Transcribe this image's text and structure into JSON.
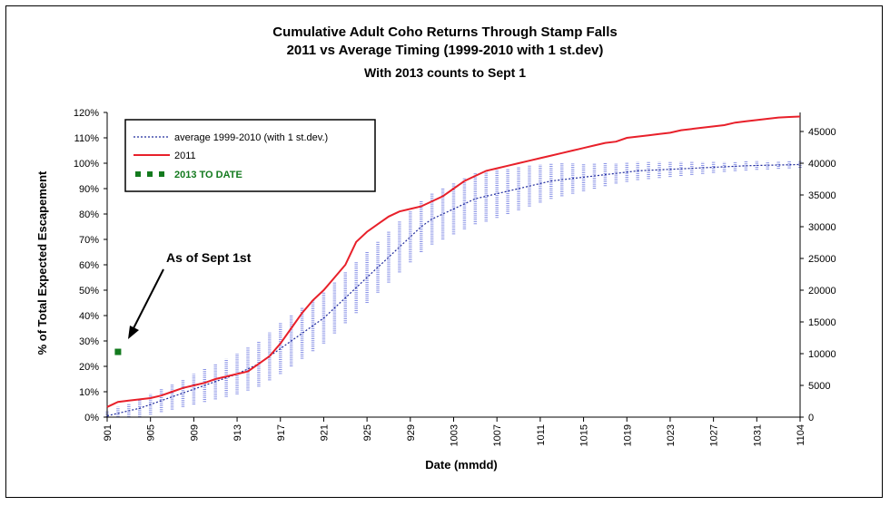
{
  "chart_data": {
    "type": "line",
    "title": "Cumulative Adult Coho Returns Through Stamp Falls",
    "subtitle": "2011 vs Average Timing (1999-2010 with 1 st.dev)",
    "subtitle2": "With 2013 counts to Sept 1",
    "xlabel": "Date (mmdd)",
    "ylabel": "% of Total Expected Escapement",
    "x_categories": [
      "901",
      "902",
      "903",
      "904",
      "905",
      "906",
      "907",
      "908",
      "909",
      "910",
      "911",
      "912",
      "913",
      "914",
      "915",
      "916",
      "917",
      "918",
      "919",
      "920",
      "921",
      "922",
      "923",
      "924",
      "925",
      "926",
      "927",
      "928",
      "929",
      "930",
      "1001",
      "1002",
      "1003",
      "1004",
      "1005",
      "1006",
      "1007",
      "1008",
      "1009",
      "1010",
      "1011",
      "1012",
      "1013",
      "1014",
      "1015",
      "1016",
      "1017",
      "1018",
      "1019",
      "1020",
      "1021",
      "1022",
      "1023",
      "1024",
      "1025",
      "1026",
      "1027",
      "1028",
      "1029",
      "1030",
      "1031",
      "1101",
      "1102",
      "1103",
      "1104"
    ],
    "x_tick_labels": [
      "901",
      "905",
      "909",
      "913",
      "917",
      "921",
      "925",
      "929",
      "1003",
      "1007",
      "1011",
      "1015",
      "1019",
      "1023",
      "1027",
      "1031",
      "1104"
    ],
    "ylim": [
      0,
      120
    ],
    "y_ticks": [
      "0%",
      "10%",
      "20%",
      "30%",
      "40%",
      "50%",
      "60%",
      "70%",
      "80%",
      "90%",
      "100%",
      "110%",
      "120%"
    ],
    "y2lim": [
      0,
      48000
    ],
    "y2_ticks": [
      "0",
      "5000",
      "10000",
      "15000",
      "20000",
      "25000",
      "30000",
      "35000",
      "40000",
      "45000"
    ],
    "legend": [
      "average 1999-2010 (with 1 st.dev.)",
      "2011",
      "2013 TO DATE"
    ],
    "legend_position": "top-left",
    "annotation": "As of Sept 1st",
    "series": [
      {
        "name": "average 1999-2010 (with 1 st.dev.)",
        "style": "dotted",
        "color": "#1f2a9c",
        "values": [
          0.5,
          1.5,
          2.5,
          3.5,
          5,
          6.5,
          8,
          9.5,
          11,
          12.5,
          14,
          15.5,
          17,
          19,
          21,
          24,
          27,
          30,
          33,
          36,
          39,
          43,
          47,
          51,
          55,
          59,
          63,
          67,
          71,
          75,
          78,
          80,
          82,
          84,
          86,
          87,
          88,
          89,
          90,
          91,
          92,
          93,
          93.5,
          94,
          94.5,
          95,
          95.5,
          96,
          96.5,
          97,
          97.2,
          97.4,
          97.6,
          97.8,
          98,
          98.2,
          98.4,
          98.6,
          98.8,
          99,
          99.1,
          99.2,
          99.3,
          99.4,
          99.5
        ],
        "std_dev": [
          2,
          2.5,
          3,
          3.5,
          4,
          4.5,
          5,
          5.5,
          6,
          6.5,
          7,
          7.5,
          8,
          8.5,
          9,
          9.5,
          10,
          10,
          10,
          10,
          10,
          10,
          10,
          10,
          10,
          10,
          10,
          10,
          10,
          10,
          10,
          10,
          10,
          10,
          10,
          10,
          9.5,
          9,
          8.5,
          8,
          7.5,
          7,
          6.5,
          6,
          5.5,
          5,
          4.5,
          4,
          3.8,
          3.6,
          3.4,
          3.2,
          3,
          2.8,
          2.6,
          2.4,
          2.2,
          2,
          1.9,
          1.8,
          1.7,
          1.6,
          1.5,
          1.4,
          1.3
        ]
      },
      {
        "name": "2011",
        "style": "solid",
        "color": "#e8202a",
        "values": [
          4,
          6,
          6.5,
          7,
          7.5,
          8.5,
          10,
          11.5,
          12.5,
          13.5,
          15,
          16,
          17,
          18,
          21,
          24,
          29,
          35,
          41,
          46,
          50,
          55,
          60,
          69,
          73,
          76,
          79,
          81,
          82,
          83,
          85,
          87,
          90,
          93,
          95,
          97,
          98,
          99,
          100,
          101,
          102,
          103,
          104,
          105,
          106,
          107,
          108,
          108.5,
          110,
          110.5,
          111,
          111.5,
          112,
          113,
          113.5,
          114,
          114.5,
          115,
          116,
          116.5,
          117,
          117.5,
          118,
          118.2,
          118.4
        ]
      },
      {
        "name": "2013 TO DATE",
        "style": "marker",
        "color": "#137a1e",
        "points": [
          {
            "x": "902",
            "y": 25.7
          }
        ]
      }
    ]
  }
}
